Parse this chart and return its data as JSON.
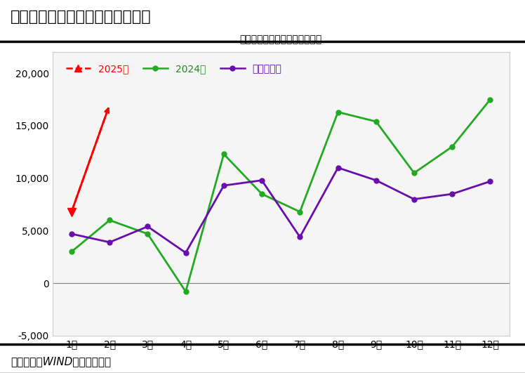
{
  "title_main": "图４：２月政府债券同比大幅多增",
  "title_chart": "当月新增政府债券规模（亿元）",
  "months": [
    "1月",
    "2月",
    "3月",
    "4月",
    "5月",
    "6月",
    "7月",
    "8月",
    "9月",
    "10月",
    "11月",
    "12月"
  ],
  "data_2024": [
    3000,
    6000,
    4700,
    -800,
    12300,
    8500,
    6800,
    16300,
    15400,
    10500,
    13000,
    17500
  ],
  "data_5yr_avg": [
    4700,
    3900,
    5400,
    2900,
    9300,
    9800,
    4400,
    11000,
    9800,
    8000,
    8500,
    9700
  ],
  "data_2025": [
    6800,
    17000
  ],
  "months_2025": [
    1,
    2
  ],
  "color_2024": "#22aa22",
  "color_5yr": "#6a0dad",
  "color_2025": "#ff0000",
  "ylim_min": -5000,
  "ylim_max": 22000,
  "yticks": [
    -5000,
    0,
    5000,
    10000,
    15000,
    20000
  ],
  "source_text": "资料来源：WIND，财信研究院",
  "legend_2025": "2025年",
  "legend_2024": "2024年",
  "legend_5yr": "近五年均值",
  "fig_bg": "#ffffff",
  "plot_bg": "#ffffff",
  "header_bg": "#ffffff",
  "border_top_color": "#000000",
  "border_bottom_color": "#000000"
}
